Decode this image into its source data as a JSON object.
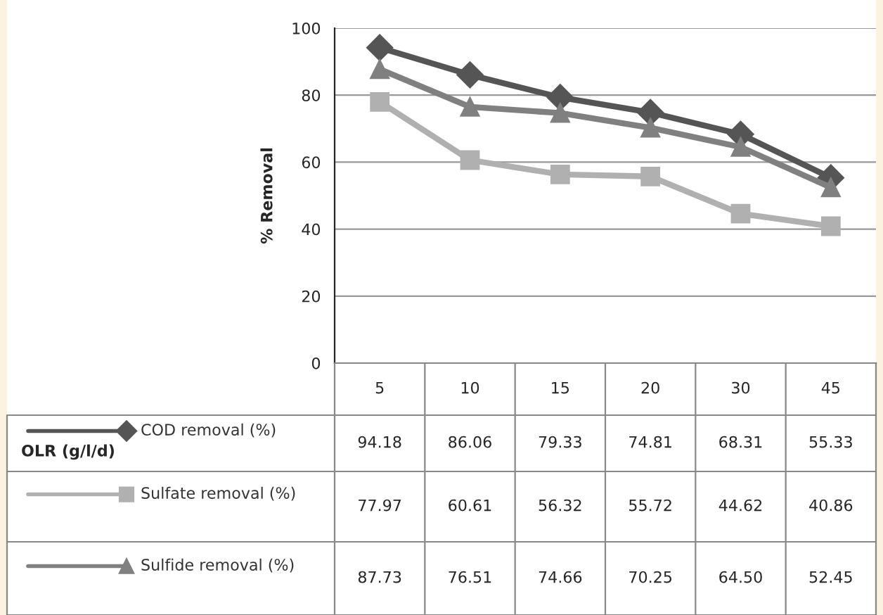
{
  "chart_data": {
    "type": "line",
    "ylabel": "% Removal",
    "annotations": [
      "OLR (g/l/d)"
    ],
    "categories": [
      "5",
      "10",
      "15",
      "20",
      "30",
      "45"
    ],
    "series": [
      {
        "name": "COD removal (%)",
        "color": "#555555",
        "marker": "diamond",
        "values": [
          94.18,
          86.06,
          79.33,
          74.81,
          68.31,
          55.33
        ],
        "value_labels": [
          "94.18",
          "86.06",
          "79.33",
          "74.81",
          "68.31",
          "55.33"
        ]
      },
      {
        "name": "Sulfate removal (%)",
        "color": "#b0b0b0",
        "marker": "square",
        "values": [
          77.97,
          60.61,
          56.32,
          55.72,
          44.62,
          40.86
        ],
        "value_labels": [
          "77.97",
          "60.61",
          "56.32",
          "55.72",
          "44.62",
          "40.86"
        ]
      },
      {
        "name": "Sulfide removal (%)",
        "color": "#808080",
        "marker": "triangle",
        "values": [
          87.73,
          76.51,
          74.66,
          70.25,
          64.5,
          52.45
        ],
        "value_labels": [
          "87.73",
          "76.51",
          "74.66",
          "70.25",
          "64.50",
          "52.45"
        ]
      }
    ],
    "ylim": [
      0,
      100
    ],
    "yticks": [
      0,
      20,
      40,
      60,
      80,
      100
    ],
    "grid": "y",
    "legend": "bottom left"
  }
}
